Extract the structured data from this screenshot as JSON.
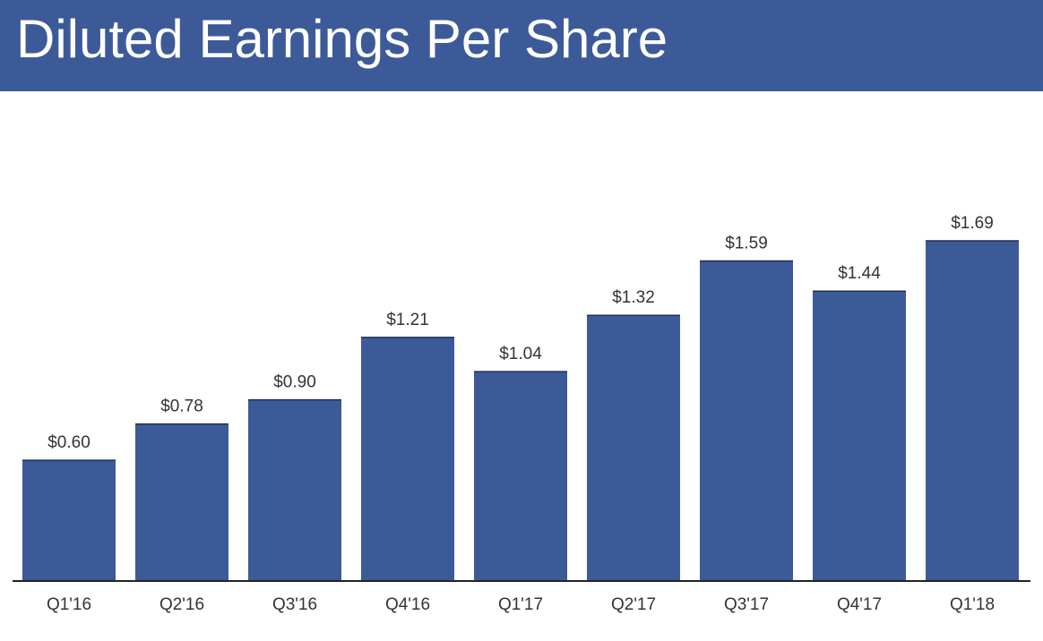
{
  "header": {
    "title": "Diluted Earnings Per Share"
  },
  "colors": {
    "bar": "#3d5a98",
    "header": "#3d5a98",
    "axis": "#222222",
    "text": "#333333"
  },
  "chart_data": {
    "type": "bar",
    "title": "Diluted Earnings Per Share",
    "categories": [
      "Q1'16",
      "Q2'16",
      "Q3'16",
      "Q4'16",
      "Q1'17",
      "Q2'17",
      "Q3'17",
      "Q4'17",
      "Q1'18"
    ],
    "values": [
      0.6,
      0.78,
      0.9,
      1.21,
      1.04,
      1.32,
      1.59,
      1.44,
      1.69
    ],
    "labels": [
      "$0.60",
      "$0.78",
      "$0.90",
      "$1.21",
      "$1.04",
      "$1.32",
      "$1.59",
      "$1.44",
      "$1.69"
    ],
    "xlabel": "",
    "ylabel": "",
    "ylim": [
      0,
      1.69
    ],
    "grid": false,
    "legend": "none"
  }
}
